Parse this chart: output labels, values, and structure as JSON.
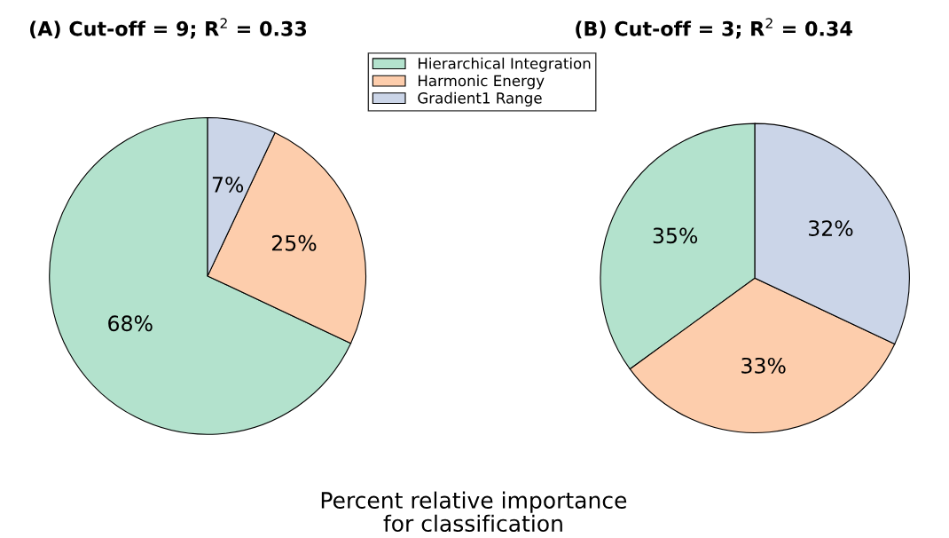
{
  "chart_data": [
    {
      "type": "pie",
      "title": "(A) Cut-off = 9; R$^{2}$ = 0.33",
      "categories": [
        "Hierarchical Integration",
        "Harmonic Energy",
        "Gradient1 Range"
      ],
      "values": [
        68,
        25,
        7
      ],
      "value_labels": [
        "68%",
        "25%",
        "7%"
      ],
      "colors": [
        "#b3e2cd",
        "#fdcdac",
        "#cbd5e8"
      ],
      "legend": "top",
      "annotations": [
        "Percent relative importance\nfor classification"
      ]
    },
    {
      "type": "pie",
      "title": "(B) Cut-off = 3; R$^{2}$ = 0.34",
      "categories": [
        null,
        null,
        null
      ],
      "values": [
        35,
        33,
        32
      ],
      "value_labels": [
        "35%",
        "33%",
        "32%"
      ],
      "colors": [
        "#b3e2cd",
        "#fdcdac",
        "#cbd5e8"
      ]
    }
  ]
}
